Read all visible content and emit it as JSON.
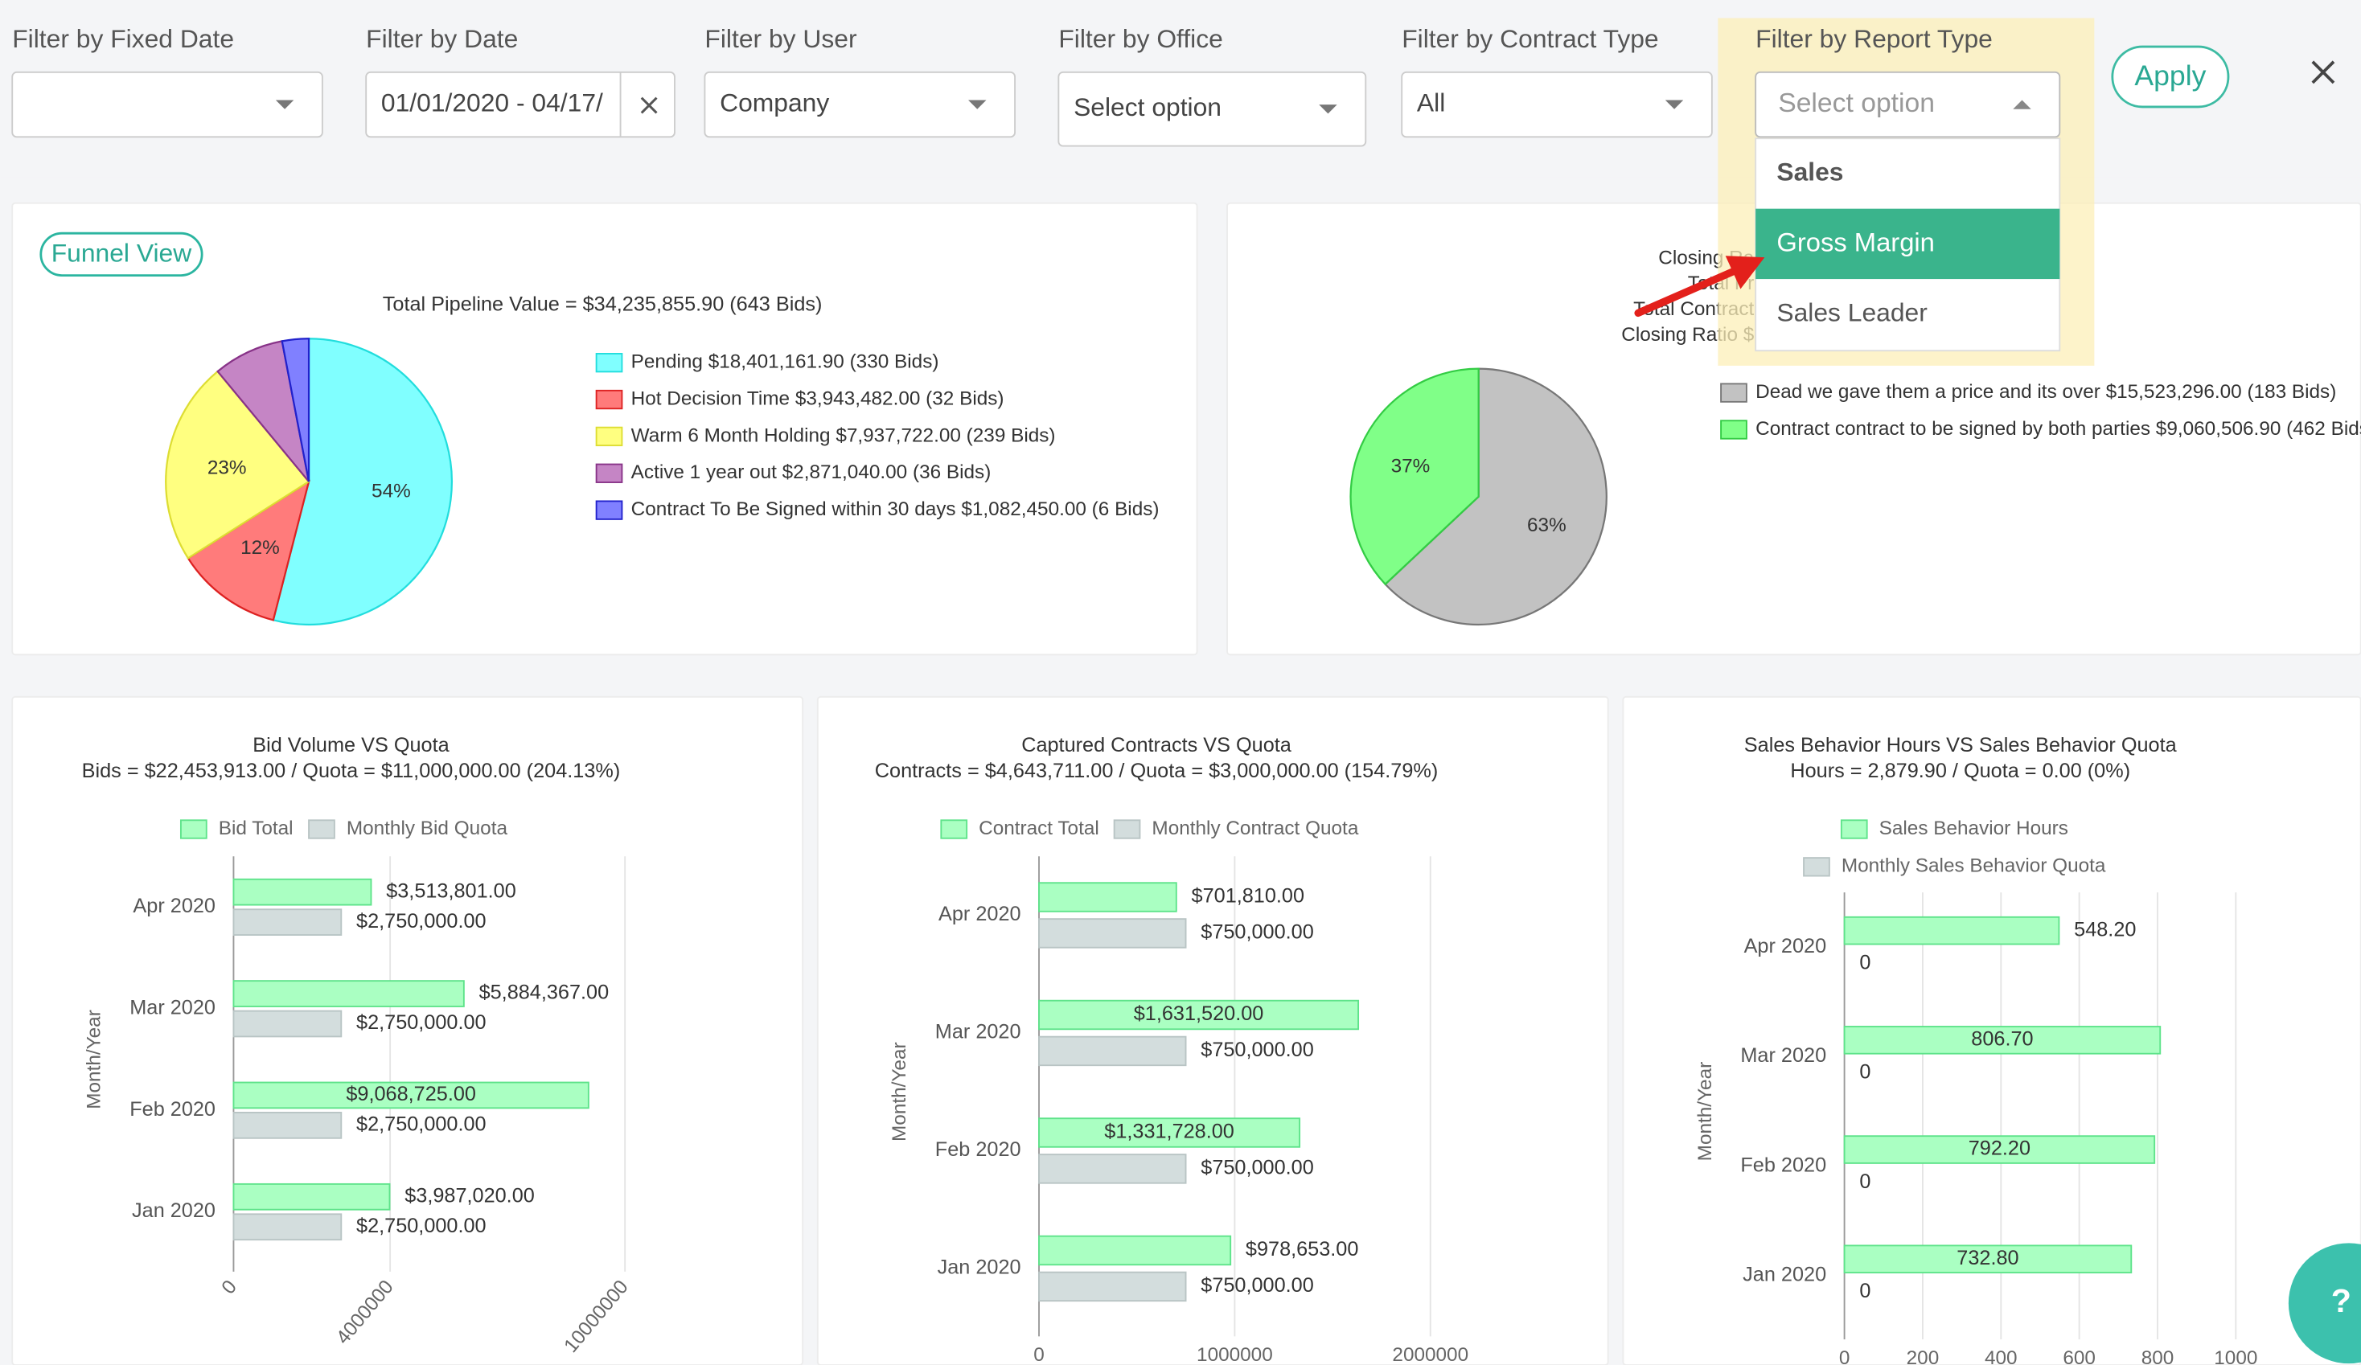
{
  "filters": [
    {
      "label": "Filter by Fixed Date"
    },
    {
      "label": "Filter by Date",
      "value": "01/01/2020 - 04/17/"
    },
    {
      "label": "Filter by User",
      "value": "Company"
    },
    {
      "label": "Filter by Office",
      "value": "Select option"
    },
    {
      "label": "Filter by Contract Type",
      "value": "All"
    },
    {
      "label": "Filter by Report Type",
      "value": "Select option"
    }
  ],
  "apply": "Apply",
  "report_type_options": [
    "Sales",
    "Gross Margin",
    "Sales Leader"
  ],
  "funnel_button": "Funnel View",
  "help": "?",
  "chart_data": [
    {
      "type": "pie",
      "title": "Total Pipeline Value = $34,235,855.90 (643 Bids)",
      "categories": [
        "Pending $18,401,161.90 (330 Bids)",
        "Hot Decision Time  $3,943,482.00 (32 Bids)",
        "Warm 6 Month Holding $7,937,722.00 (239 Bids)",
        "Active 1 year out $2,871,040.00 (36 Bids)",
        "Contract To Be Signed within 30 days $1,082,450.00 (6 Bids)"
      ],
      "values": [
        54,
        12,
        23,
        8,
        3
      ],
      "value_labels": [
        "54%",
        "12%",
        "23%",
        null,
        null
      ],
      "colors": [
        "#80ffff",
        "#ff7b7b",
        "#ffff80",
        "#c585c5",
        "#8080ff"
      ],
      "border_colors": [
        "#22dddd",
        "#dd2222",
        "#dddd33",
        "#883388",
        "#2222cc"
      ]
    },
    {
      "type": "pie",
      "title": [
        "Closing Ra",
        "Total Pr",
        "Total Contract",
        "Closing Ratio $"
      ],
      "categories": [
        "Dead we gave them a price and its over $15,523,296.00 (183 Bids)",
        "Contract contract to be signed by both parties $9,060,506.90 (462 Bids"
      ],
      "values": [
        63,
        37
      ],
      "value_labels": [
        "63%",
        "37%"
      ],
      "colors": [
        "#c2c2c2",
        "#80ff88"
      ],
      "border_colors": [
        "#777777",
        "#33cc44"
      ]
    },
    {
      "type": "hbar",
      "title": "Bid Volume VS Quota",
      "subtitle": "Bids = $22,453,913.00 / Quota = $11,000,000.00 (204.13%)",
      "ylabel": "Month/Year",
      "categories": [
        "Apr 2020",
        "Mar 2020",
        "Feb 2020",
        "Jan 2020"
      ],
      "series": [
        {
          "name": "Bid Total",
          "color": "#aaffc2",
          "values": [
            3513801,
            5884367,
            9068725,
            3987020
          ],
          "value_labels": [
            "$3,513,801.00",
            "$5,884,367.00",
            "$9,068,725.00",
            "$3,987,020.00"
          ]
        },
        {
          "name": "Monthly Bid Quota",
          "color": "#d3dddd",
          "values": [
            2750000,
            2750000,
            2750000,
            2750000
          ],
          "value_labels": [
            "$2,750,000.00",
            "$2,750,000.00",
            "$2,750,000.00",
            "$2,750,000.00"
          ]
        }
      ],
      "xlim": [
        0,
        10000000
      ],
      "xticks": [
        0,
        4000000,
        10000000
      ],
      "grid": true
    },
    {
      "type": "hbar",
      "title": "Captured Contracts VS Quota",
      "subtitle": "Contracts = $4,643,711.00 / Quota = $3,000,000.00 (154.79%)",
      "ylabel": "Month/Year",
      "categories": [
        "Apr 2020",
        "Mar 2020",
        "Feb 2020",
        "Jan 2020"
      ],
      "series": [
        {
          "name": "Contract Total",
          "color": "#aaffc2",
          "values": [
            701810,
            1631520,
            1331728,
            978653
          ],
          "value_labels": [
            "$701,810.00",
            "$1,631,520.00",
            "$1,331,728.00",
            "$978,653.00"
          ]
        },
        {
          "name": "Monthly Contract Quota",
          "color": "#d3dddd",
          "values": [
            750000,
            750000,
            750000,
            750000
          ],
          "value_labels": [
            "$750,000.00",
            "$750,000.00",
            "$750,000.00",
            "$750,000.00"
          ]
        }
      ],
      "xlim": [
        0,
        2000000
      ],
      "xticks": [
        0,
        1000000,
        2000000
      ],
      "grid": true
    },
    {
      "type": "hbar",
      "title": "Sales Behavior Hours VS Sales Behavior Quota",
      "subtitle": "Hours = 2,879.90 / Quota = 0.00 (0%)",
      "ylabel": "Month/Year",
      "categories": [
        "Apr 2020",
        "Mar 2020",
        "Feb 2020",
        "Jan 2020"
      ],
      "series": [
        {
          "name": "Sales Behavior Hours",
          "color": "#aaffc2",
          "values": [
            548.2,
            806.7,
            792.2,
            732.8
          ],
          "value_labels": [
            "548.20",
            "806.70",
            "792.20",
            "732.80"
          ]
        },
        {
          "name": "Monthly Sales Behavior Quota",
          "color": "#d3dddd",
          "values": [
            0,
            0,
            0,
            0
          ]
        }
      ],
      "xlim": [
        0,
        1000
      ],
      "xticks": [
        0,
        200,
        400,
        600,
        800,
        1000
      ],
      "grid": true
    }
  ]
}
